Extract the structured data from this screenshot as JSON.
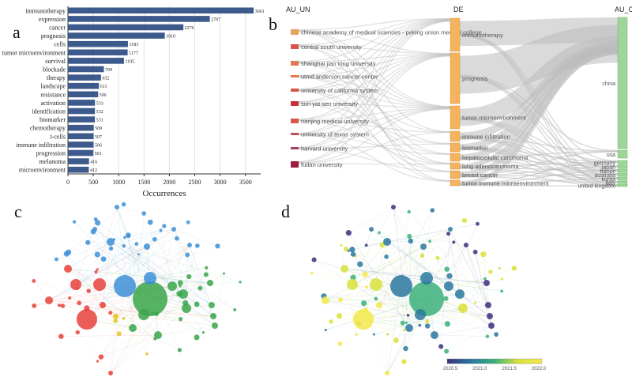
{
  "panels": {
    "a": "a",
    "b": "b",
    "c": "c",
    "d": "d"
  },
  "chart_data": [
    {
      "type": "bar",
      "orientation": "horizontal",
      "categories": [
        "immunotherapy",
        "expression",
        "cancer",
        "prognosis",
        "cells",
        "tumor microenvironment",
        "survival",
        "blockade",
        "therapy",
        "landscape",
        "resistance",
        "activation",
        "identification",
        "biomarker",
        "chemotherapy",
        "t-cells",
        "immune infiltration",
        "progression",
        "melanoma",
        "microenvironment"
      ],
      "values": [
        3661,
        2797,
        2276,
        1910,
        1183,
        1177,
        1105,
        709,
        652,
        611,
        596,
        533,
        532,
        531,
        509,
        507,
        506,
        501,
        416,
        412
      ],
      "xlabel": "Occurrences",
      "xlim": [
        0,
        3800
      ],
      "xticks": [
        0,
        500,
        1000,
        1500,
        2000,
        2500,
        3000,
        3500
      ],
      "color": "#3d5a8c",
      "grid": true
    },
    {
      "type": "sankey",
      "column_titles": [
        "AU_UN",
        "DE",
        "AU_CO"
      ],
      "left": [
        {
          "label": "chinese academy of medical sciences - peking union medical college",
          "color": "#e8a25a"
        },
        {
          "label": "central south university",
          "color": "#d9534f"
        },
        {
          "label": "shanghai jiao tong university",
          "color": "#e07a4f"
        },
        {
          "label": "utmd anderson cancer center",
          "color": "#e8784a"
        },
        {
          "label": "university of california system",
          "color": "#d4574a"
        },
        {
          "label": "sun yat sen university",
          "color": "#c9303e"
        },
        {
          "label": "nanjing medical university",
          "color": "#d8564a"
        },
        {
          "label": "university of texas system",
          "color": "#c44a5a"
        },
        {
          "label": "harvard university",
          "color": "#a23e5e"
        },
        {
          "label": "fudan university",
          "color": "#a01c3c"
        }
      ],
      "middle": [
        "immunotherapy",
        "prognosis",
        "tumor microenvironment",
        "immune infiltration",
        "biomarker",
        "hepatocellular carcinoma",
        "lung adenocarcinoma",
        "breast cancer",
        "tumor immune microenvironment"
      ],
      "right": [
        "china",
        "usa",
        "germany",
        "japan",
        "france",
        "australia",
        "korea",
        "italy",
        "united kingdom"
      ],
      "colors": {
        "middle": "#f6b35f",
        "right": "#9fd59a",
        "link": "#bbbbbb"
      }
    },
    {
      "type": "network",
      "variant": "clusters",
      "cluster_colors": {
        "red": "#e8413c",
        "blue": "#3d8fd6",
        "green": "#3aa64a",
        "yellow": "#e6c425"
      }
    },
    {
      "type": "network",
      "variant": "overlay",
      "colorbar": {
        "ticks": [
          "2020.5",
          "2021.0",
          "2021.5",
          "2022.0"
        ],
        "colors": [
          "#3b2f7e",
          "#2a78a0",
          "#3bb07a",
          "#d8e23a",
          "#f3e94a"
        ]
      }
    }
  ]
}
